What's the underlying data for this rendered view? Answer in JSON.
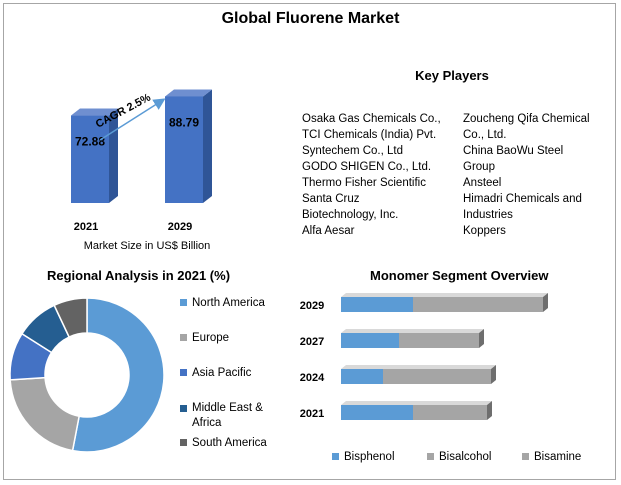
{
  "page": {
    "title": "Global Fluorene Market"
  },
  "key_players": {
    "title": "Key Players",
    "col1": [
      "Osaka Gas Chemicals Co.,",
      "TCI Chemicals (India) Pvt.",
      "Syntechem Co., Ltd",
      "GODO SHIGEN Co., Ltd.",
      "Thermo Fisher Scientific",
      "Santa Cruz",
      "Biotechnology, Inc.",
      "Alfa Aesar"
    ],
    "col2": [
      "Zoucheng Qifa Chemical",
      "Co., Ltd.",
      "China BaoWu Steel",
      "Group",
      "Ansteel",
      "Himadri Chemicals and",
      "Industries",
      "Koppers"
    ]
  },
  "colors": {
    "bar3d": "#4472c4",
    "blue": "#5b9bd5",
    "grey": "#a5a5a5",
    "dark_blue": "#4472c4",
    "navy": "#255e91",
    "dark_grey": "#636363"
  },
  "chart_data": [
    {
      "type": "bar",
      "categories": [
        "2021",
        "2029"
      ],
      "values": [
        72.88,
        88.79
      ],
      "xlabel": "Market Size in US$ Billion",
      "annotation": "CAGR 2.5%"
    },
    {
      "type": "pie",
      "title": "Regional Analysis in 2021 (%)",
      "categories": [
        "North America",
        "Europe",
        "Asia Pacific",
        "Middle East & Africa",
        "South America"
      ],
      "values": [
        53,
        21,
        10,
        9,
        7
      ],
      "colors": [
        "#5b9bd5",
        "#a5a5a5",
        "#4472c4",
        "#255e91",
        "#636363"
      ]
    },
    {
      "type": "bar",
      "orientation": "horizontal",
      "stacked": true,
      "title": "Monomer Segment Overview",
      "categories": [
        "2029",
        "2027",
        "2024",
        "2021"
      ],
      "series": [
        {
          "name": "Bisphenol",
          "values": [
            36,
            29,
            21,
            36
          ],
          "color": "#5b9bd5"
        },
        {
          "name": "Bisalcohol",
          "values": [
            65,
            40,
            54,
            37
          ],
          "color": "#a5a5a5"
        },
        {
          "name": "Bisamine",
          "values": [
            0,
            0,
            0,
            0
          ],
          "color": "#a5a5a5"
        }
      ]
    }
  ]
}
